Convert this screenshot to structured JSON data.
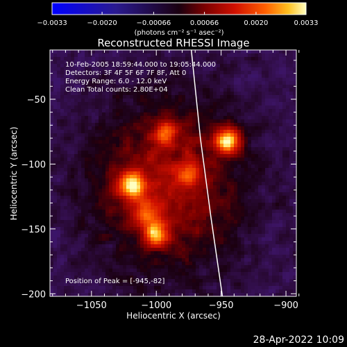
{
  "chart_data": {
    "type": "heatmap",
    "title": "Reconstructed RHESSI Image",
    "xlabel": "Heliocentric X (arcsec)",
    "ylabel": "Heliocentric Y (arcsec)",
    "xlim": [
      -1082,
      -892
    ],
    "ylim": [
      -202,
      -12
    ],
    "x_ticks": [
      -1050,
      -1000,
      -950,
      -900
    ],
    "x_tick_labels": [
      "−1050",
      "−1000",
      "−950",
      "−900"
    ],
    "y_ticks": [
      -50,
      -100,
      -150,
      -200
    ],
    "y_tick_labels": [
      "−50",
      "−100",
      "−150",
      "−200"
    ],
    "colorbar": {
      "range": [
        -0.0033,
        0.0033
      ],
      "ticks": [
        -0.0033,
        -0.002,
        -0.00066,
        0.00066,
        0.002,
        0.0033
      ],
      "tick_labels": [
        "−0.0033",
        "−0.0020",
        "−0.00066",
        "0.00066",
        "0.0020",
        "0.0033"
      ],
      "unit_label": "(photons cm⁻² s⁻¹ asec⁻²)"
    },
    "annotations": [
      "10-Feb-2005 18:59:44.000 to 19:05:44.000",
      "Detectors: 3F 4F 5F 6F 7F 8F, Att 0",
      "Energy Range: 6.0 - 12.0 keV",
      "Clean    Total counts: 2.80E+04"
    ],
    "peak_label": "Position of Peak = [-945,-82]",
    "peak_position": [
      -945,
      -82
    ],
    "sources": [
      {
        "x": -945,
        "y": -82,
        "value": 0.0033
      },
      {
        "x": -1019,
        "y": -116,
        "value": 0.0029
      },
      {
        "x": -1000,
        "y": -154,
        "value": 0.0024
      },
      {
        "x": -993,
        "y": -76,
        "value": 0.0018
      },
      {
        "x": -1008,
        "y": -138,
        "value": 0.0016
      },
      {
        "x": -975,
        "y": -108,
        "value": 0.0014
      }
    ],
    "limb_curve": [
      [
        -973,
        -12
      ],
      [
        -966,
        -80
      ],
      [
        -958,
        -140
      ],
      [
        -949,
        -202
      ]
    ]
  },
  "footer": {
    "timestamp": "28-Apr-2022 10:09"
  }
}
